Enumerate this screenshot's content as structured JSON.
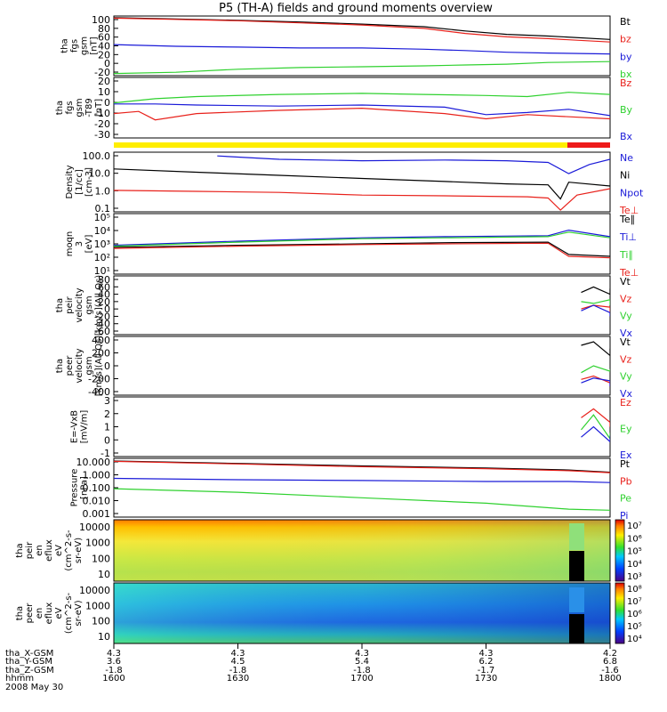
{
  "title": "P5 (TH-A) fields and ground moments overview",
  "colors": {
    "black": "#000000",
    "red": "#e8211b",
    "green": "#2fd12f",
    "blue": "#1a1ad8",
    "yellow": "#ffee00",
    "track_red": "#ee1a1a"
  },
  "chart_data": [
    {
      "id": "fgs_mag",
      "type": "line",
      "ylabel": [
        "tha",
        "fgs",
        "gsm",
        "[nT]"
      ],
      "ylim": [
        -35,
        105
      ],
      "yticks": [
        "100",
        "80",
        "60",
        "40",
        "20",
        "0",
        "-20"
      ],
      "series": [
        {
          "name": "Bt",
          "color": "black",
          "x": [
            1600,
            1615,
            1630,
            1645,
            1700,
            1715,
            1725,
            1735,
            1745,
            1800
          ],
          "values": [
            101,
            98,
            95,
            91,
            86,
            80,
            70,
            62,
            58,
            50
          ]
        },
        {
          "name": "bz",
          "color": "red",
          "x": [
            1600,
            1615,
            1630,
            1645,
            1700,
            1715,
            1725,
            1735,
            1745,
            1800
          ],
          "values": [
            100,
            97,
            94,
            89,
            84,
            76,
            64,
            56,
            52,
            44
          ]
        },
        {
          "name": "by",
          "color": "blue",
          "x": [
            1600,
            1615,
            1630,
            1645,
            1700,
            1715,
            1725,
            1735,
            1745,
            1800
          ],
          "values": [
            38,
            34,
            32,
            30,
            30,
            27,
            24,
            20,
            18,
            16
          ]
        },
        {
          "name": "bx",
          "color": "green",
          "x": [
            1600,
            1615,
            1630,
            1645,
            1700,
            1715,
            1725,
            1735,
            1745,
            1800
          ],
          "values": [
            -30,
            -27,
            -20,
            -16,
            -14,
            -12,
            -10,
            -8,
            -4,
            -2
          ]
        }
      ]
    },
    {
      "id": "fgs_gse",
      "type": "line",
      "ylabel": [
        "tha",
        "fgs",
        "gsm",
        "-T89",
        "[nT]"
      ],
      "ylim": [
        -35,
        22
      ],
      "yticks": [
        "20",
        "10",
        "0",
        "-10",
        "-20",
        "-30"
      ],
      "series": [
        {
          "name": "Bz",
          "color": "red",
          "x": [
            1600,
            1606,
            1610,
            1620,
            1640,
            1700,
            1720,
            1730,
            1740,
            1800
          ],
          "values": [
            -12,
            -10,
            -18,
            -12,
            -9,
            -7,
            -12,
            -17,
            -13,
            -17
          ]
        },
        {
          "name": "By",
          "color": "green",
          "x": [
            1600,
            1610,
            1620,
            1640,
            1700,
            1715,
            1730,
            1740,
            1750,
            1800
          ],
          "values": [
            -2,
            2,
            4,
            6,
            7,
            6,
            5,
            4,
            8,
            6
          ]
        },
        {
          "name": "Bx",
          "color": "blue",
          "x": [
            1600,
            1610,
            1620,
            1640,
            1700,
            1720,
            1730,
            1740,
            1750,
            1800
          ],
          "values": [
            -3,
            -3,
            -4,
            -5,
            -4,
            -6,
            -13,
            -11,
            -8,
            -14
          ]
        }
      ]
    },
    {
      "id": "density",
      "type": "line",
      "yscale": "log",
      "ylabel": [
        "Density",
        "[1/cc]",
        "[cm-3]"
      ],
      "ylim": [
        0.05,
        30
      ],
      "yticks": [
        "100.0",
        "10.0",
        "1.0",
        "0.1"
      ],
      "series": [
        {
          "name": "Ne",
          "color": "blue",
          "x": [
            1625,
            1640,
            1700,
            1720,
            1735,
            1745,
            1750,
            1755,
            1800
          ],
          "values": [
            20,
            14,
            12,
            13,
            12,
            10,
            3,
            8,
            14
          ]
        },
        {
          "name": "Ni",
          "color": "black",
          "x": [
            1600,
            1620,
            1640,
            1700,
            1720,
            1735,
            1745,
            1748,
            1750,
            1800
          ],
          "values": [
            5,
            3.5,
            2.5,
            1.8,
            1.3,
            1.0,
            0.9,
            0.2,
            1.2,
            0.8
          ]
        },
        {
          "name": "Npot",
          "color": "blue",
          "x": [],
          "values": []
        },
        {
          "name": "Te⊥",
          "color": "red",
          "x": [
            1600,
            1620,
            1640,
            1700,
            1720,
            1740,
            1745,
            1748,
            1752,
            1800
          ],
          "values": [
            0.5,
            0.45,
            0.4,
            0.3,
            0.28,
            0.25,
            0.22,
            0.06,
            0.3,
            0.6
          ]
        }
      ]
    },
    {
      "id": "temperature",
      "type": "line",
      "yscale": "log",
      "ylabel": [
        "moqn",
        "3",
        "[eV]"
      ],
      "ylim": [
        10,
        100000
      ],
      "yticks": [
        "10⁵",
        "10⁴",
        "10³",
        "10²",
        "10¹"
      ],
      "series": [
        {
          "name": "Te∥",
          "color": "black",
          "x": [
            1600,
            1630,
            1700,
            1720,
            1745,
            1750,
            1800
          ],
          "values": [
            600,
            800,
            1000,
            1200,
            1300,
            200,
            150
          ]
        },
        {
          "name": "Ti⊥",
          "color": "blue",
          "x": [
            1600,
            1630,
            1700,
            1720,
            1745,
            1750,
            1800
          ],
          "values": [
            800,
            1500,
            2500,
            3000,
            3500,
            8000,
            3000
          ]
        },
        {
          "name": "Ti∥",
          "color": "green",
          "x": [
            1600,
            1630,
            1700,
            1720,
            1745,
            1750,
            1800
          ],
          "values": [
            700,
            1300,
            2200,
            2500,
            3000,
            6000,
            2500
          ]
        },
        {
          "name": "Te⊥",
          "color": "red",
          "x": [
            1600,
            1630,
            1700,
            1720,
            1745,
            1750,
            1800
          ],
          "values": [
            500,
            700,
            900,
            1000,
            1100,
            150,
            120
          ]
        }
      ]
    },
    {
      "id": "peir_velocity",
      "type": "line",
      "ylabel": [
        "tha",
        "peir",
        "velocity",
        "gsm",
        "[km/s](All Qs)"
      ],
      "ylim": [
        -70,
        90
      ],
      "yticks": [
        "80",
        "60",
        "40",
        "20",
        "0",
        "-20",
        "-40",
        "-60"
      ],
      "series": [
        {
          "name": "Vt",
          "color": "black",
          "x": [
            1753,
            1756,
            1760,
            1800
          ],
          "values": [
            45,
            60,
            40,
            55
          ]
        },
        {
          "name": "Vz",
          "color": "red",
          "x": [
            1753,
            1756,
            1760,
            1800
          ],
          "values": [
            0,
            10,
            5,
            -10
          ]
        },
        {
          "name": "Vy",
          "color": "green",
          "x": [
            1753,
            1756,
            1760,
            1800
          ],
          "values": [
            20,
            15,
            25,
            10
          ]
        },
        {
          "name": "Vx",
          "color": "blue",
          "x": [
            1753,
            1756,
            1760,
            1800
          ],
          "values": [
            -5,
            10,
            -10,
            -20
          ]
        }
      ]
    },
    {
      "id": "peer_velocity",
      "type": "line",
      "ylabel": [
        "tha",
        "peer",
        "velocity",
        "gsm",
        "[km/s](All Qs)"
      ],
      "ylim": [
        -430,
        430
      ],
      "yticks": [
        "400",
        "200",
        "0",
        "-200",
        "-400"
      ],
      "series": [
        {
          "name": "Vt",
          "color": "black",
          "x": [
            1753,
            1756,
            1760,
            1800
          ],
          "values": [
            300,
            350,
            150,
            250
          ]
        },
        {
          "name": "Vz",
          "color": "red",
          "x": [
            1753,
            1756,
            1760,
            1800
          ],
          "values": [
            -200,
            -150,
            -250,
            -300
          ]
        },
        {
          "name": "Vy",
          "color": "green",
          "x": [
            1753,
            1756,
            1760,
            1800
          ],
          "values": [
            -100,
            0,
            -80,
            -50
          ]
        },
        {
          "name": "Vx",
          "color": "blue",
          "x": [
            1753,
            1756,
            1760,
            1800
          ],
          "values": [
            -250,
            -180,
            -220,
            -300
          ]
        }
      ]
    },
    {
      "id": "efield",
      "type": "line",
      "ylabel": [
        "E=-VxB",
        "[mV/m]"
      ],
      "ylim": [
        -0.8,
        3.2
      ],
      "yticks": [
        "3",
        "2",
        "1",
        "0",
        "-1"
      ],
      "series": [
        {
          "name": "Ez",
          "color": "red",
          "x": [
            1753,
            1756,
            1760,
            1800
          ],
          "values": [
            1.8,
            2.4,
            1.5,
            1.2
          ]
        },
        {
          "name": "Ey",
          "color": "green",
          "x": [
            1753,
            1756,
            1760,
            1800
          ],
          "values": [
            1.0,
            2.0,
            0.4,
            0.8
          ]
        },
        {
          "name": "Ex",
          "color": "blue",
          "x": [
            1753,
            1756,
            1760,
            1800
          ],
          "values": [
            0.5,
            1.2,
            0.2,
            0.6
          ]
        }
      ]
    },
    {
      "id": "pressure",
      "type": "line",
      "yscale": "log",
      "ylabel": [
        "Pressure",
        "[nPa]"
      ],
      "ylim": [
        0.0008,
        14
      ],
      "yticks": [
        "10.000",
        "1.000",
        "0.100",
        "0.010",
        "0.001"
      ],
      "series": [
        {
          "name": "Pt",
          "color": "black",
          "x": [
            1600,
            1630,
            1700,
            1730,
            1750,
            1800
          ],
          "values": [
            9,
            6,
            4,
            2.8,
            2,
            1.4
          ]
        },
        {
          "name": "Pb",
          "color": "red",
          "x": [
            1600,
            1630,
            1700,
            1730,
            1750,
            1800
          ],
          "values": [
            8.5,
            5.5,
            3.5,
            2.5,
            1.8,
            1.3
          ]
        },
        {
          "name": "Pe",
          "color": "green",
          "x": [
            1600,
            1630,
            1700,
            1730,
            1750,
            1800
          ],
          "values": [
            0.09,
            0.05,
            0.02,
            0.008,
            0.003,
            0.0025
          ]
        },
        {
          "name": "Pi",
          "color": "blue",
          "x": [
            1600,
            1630,
            1700,
            1730,
            1750,
            1800
          ],
          "values": [
            0.5,
            0.4,
            0.35,
            0.3,
            0.3,
            0.25
          ]
        }
      ]
    },
    {
      "id": "peir_spec",
      "type": "heatmap",
      "ylabel": [
        "tha",
        "peir",
        "en",
        "eflux",
        "eV",
        "(cm^2-s-",
        "sr-eV)"
      ],
      "yscale": "log",
      "ylim": [
        7,
        20000
      ],
      "yticks": [
        "10000",
        "1000",
        "100",
        "10"
      ],
      "colorbar": [
        "10⁷",
        "10⁶",
        "10⁵",
        "10⁴",
        "10³"
      ]
    },
    {
      "id": "peer_spec",
      "type": "heatmap",
      "ylabel": [
        "tha",
        "peer",
        "en",
        "eflux",
        "eV",
        "(cm^2-s-",
        "sr-eV)"
      ],
      "yscale": "log",
      "ylim": [
        7,
        20000
      ],
      "yticks": [
        "10000",
        "1000",
        "100",
        "10"
      ],
      "colorbar": [
        "10⁸",
        "10⁷",
        "10⁶",
        "10⁵",
        "10⁴"
      ]
    }
  ],
  "xaxis": {
    "row_labels": [
      "tha_X-GSM",
      "tha_Y-GSM",
      "tha_Z-GSM",
      "hhmm",
      "2008 May 30"
    ],
    "columns": [
      {
        "x": 1600,
        "values": [
          "4.3",
          "3.6",
          "-1.8",
          "1600"
        ]
      },
      {
        "x": 1630,
        "values": [
          "4.3",
          "4.5",
          "-1.8",
          "1630"
        ]
      },
      {
        "x": 1700,
        "values": [
          "4.3",
          "5.4",
          "-1.8",
          "1700"
        ]
      },
      {
        "x": 1730,
        "values": [
          "4.3",
          "6.2",
          "-1.7",
          "1730"
        ]
      },
      {
        "x": 1800,
        "values": [
          "4.2",
          "6.8",
          "-1.6",
          "1800"
        ]
      }
    ]
  }
}
